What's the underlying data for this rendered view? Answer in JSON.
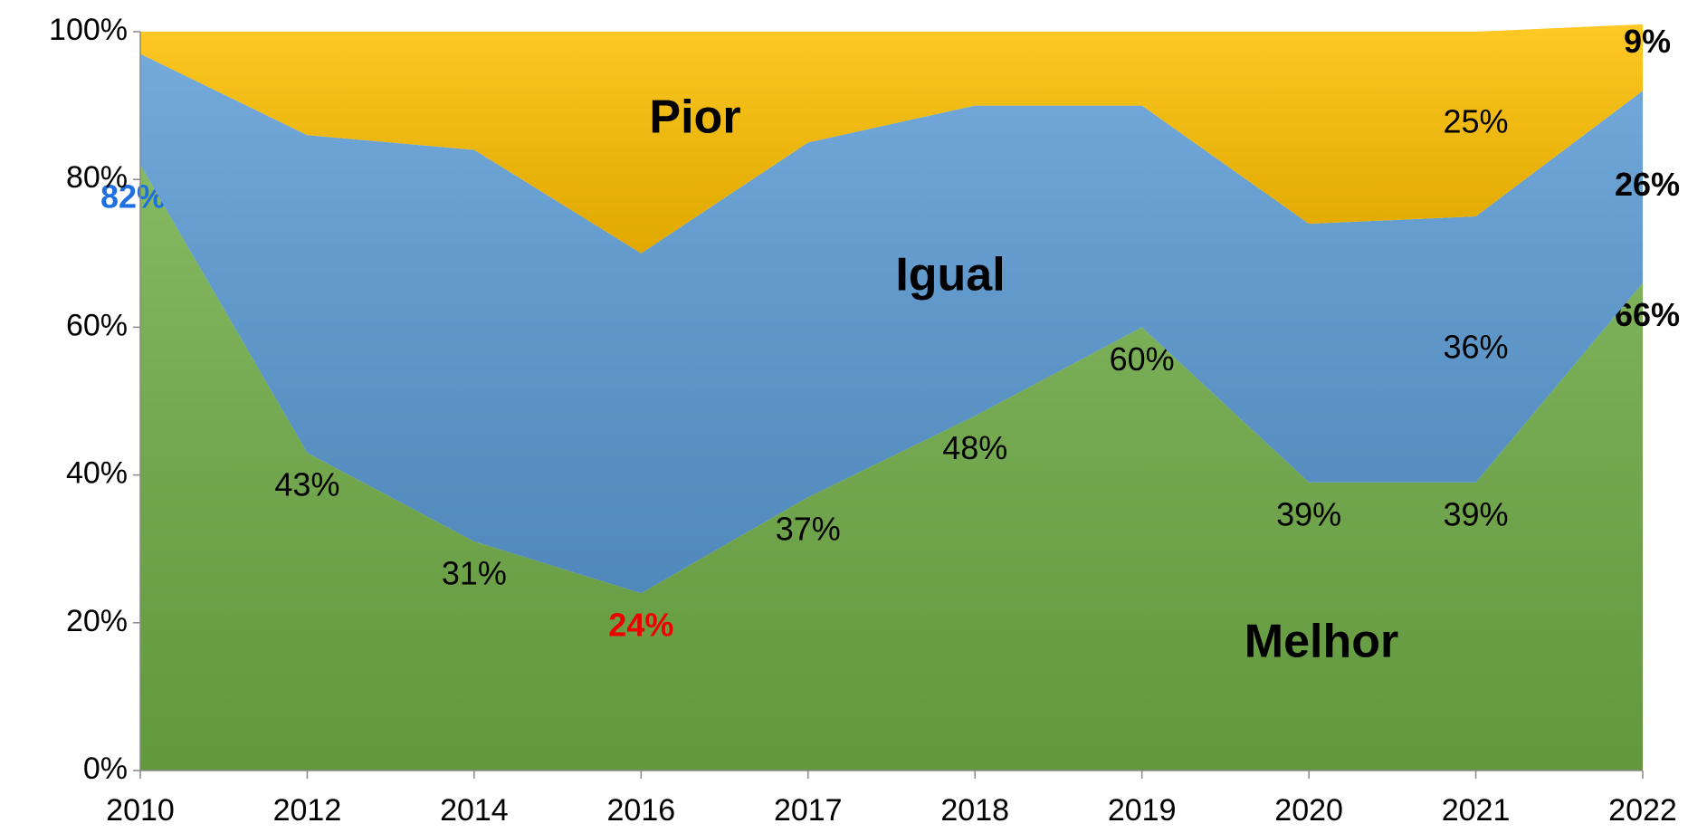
{
  "chart_data": {
    "type": "stacked_area",
    "categories": [
      "2010",
      "2012",
      "2014",
      "2016",
      "2017",
      "2018",
      "2019",
      "2020",
      "2021",
      "2022"
    ],
    "series": [
      {
        "name": "Melhor",
        "color": "#70ad47",
        "values": [
          82,
          43,
          31,
          24,
          37,
          48,
          60,
          39,
          39,
          66
        ],
        "value_labels": [
          "82%",
          "43%",
          "31%",
          "24%",
          "37%",
          "48%",
          "60%",
          "39%",
          "39%",
          "66%"
        ],
        "label_colors": [
          "#1f6fe0",
          null,
          null,
          "#ee0000",
          null,
          null,
          null,
          null,
          null,
          "#000000"
        ]
      },
      {
        "name": "Igual",
        "color": "#5b9bd5",
        "values": [
          15,
          43,
          53,
          46,
          48,
          42,
          30,
          35,
          36,
          26
        ],
        "value_labels": [
          null,
          null,
          null,
          null,
          null,
          null,
          null,
          null,
          "36%",
          "26%"
        ],
        "label_colors": [
          null,
          null,
          null,
          null,
          null,
          null,
          null,
          null,
          null,
          "#000000"
        ]
      },
      {
        "name": "Pior",
        "color": "#ffc000",
        "values": [
          3,
          14,
          16,
          30,
          15,
          10,
          10,
          26,
          25,
          9
        ],
        "value_labels": [
          null,
          null,
          null,
          null,
          null,
          null,
          null,
          null,
          "25%",
          "9%"
        ],
        "label_colors": [
          null,
          null,
          null,
          null,
          null,
          null,
          null,
          null,
          null,
          "#000000"
        ]
      }
    ],
    "ylim": [
      0,
      100
    ],
    "yticks": [
      {
        "value": 0,
        "label": "0%"
      },
      {
        "value": 20,
        "label": "20%"
      },
      {
        "value": 40,
        "label": "40%"
      },
      {
        "value": 60,
        "label": "60%"
      },
      {
        "value": 80,
        "label": "80%"
      },
      {
        "value": 100,
        "label": "100%"
      }
    ]
  }
}
